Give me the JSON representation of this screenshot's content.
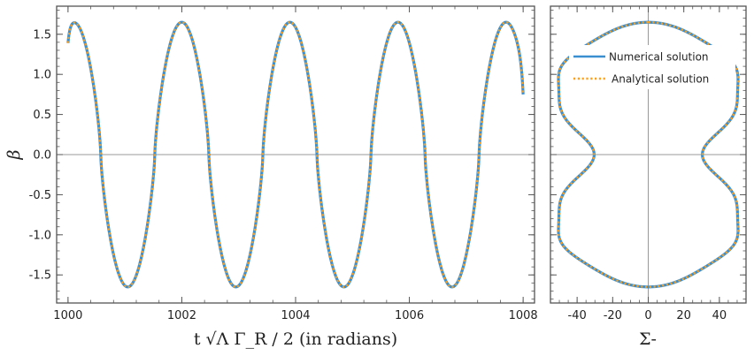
{
  "chart_data": [
    {
      "type": "line",
      "xlabel": "t √Λ Γ_R / 2  (in radians)",
      "ylabel": "β",
      "xlim": [
        999.8,
        1008.2
      ],
      "ylim": [
        -1.85,
        1.85
      ],
      "x_ticks": [
        "1000",
        "1002",
        "1004",
        "1006",
        "1008"
      ],
      "y_ticks": [
        "-1.5",
        "-1.0",
        "-0.5",
        "0.0",
        "0.5",
        "1.0",
        "1.5"
      ],
      "grid": false,
      "zero_line": "horizontal",
      "curve_model": {
        "function": "beta(t)",
        "x_range": [
          1000.0,
          1008.0
        ],
        "amplitude": 1.65,
        "period": 1.9,
        "first_peak": 1000.1,
        "start_value": 1.39,
        "end_value": 0.75
      },
      "series": [
        {
          "name": "Numerical solution",
          "color": "#3a8fd0",
          "style": "solid"
        },
        {
          "name": "Analytical solution",
          "color": "#ff9f1a",
          "style": "dotted"
        }
      ]
    },
    {
      "type": "line",
      "xlabel": "Σ-",
      "ylabel": "",
      "xlim": [
        -55,
        55
      ],
      "ylim": [
        -1.85,
        1.85
      ],
      "x_ticks": [
        "-40",
        "-20",
        "0",
        "20",
        "40"
      ],
      "grid": false,
      "zero_line": "both",
      "curve_model": {
        "shape": "closed-symmetric-loop",
        "beta_range": [
          -1.65,
          1.65
        ],
        "sigma_max": 50.5,
        "sigma_waist": 27.5
      },
      "legend": {
        "position": "top",
        "entries": [
          "Numerical solution",
          "Analytical solution"
        ]
      },
      "series": [
        {
          "name": "Numerical solution",
          "color": "#3a8fd0",
          "style": "solid"
        },
        {
          "name": "Analytical solution",
          "color": "#ff9f1a",
          "style": "dotted"
        }
      ]
    }
  ]
}
